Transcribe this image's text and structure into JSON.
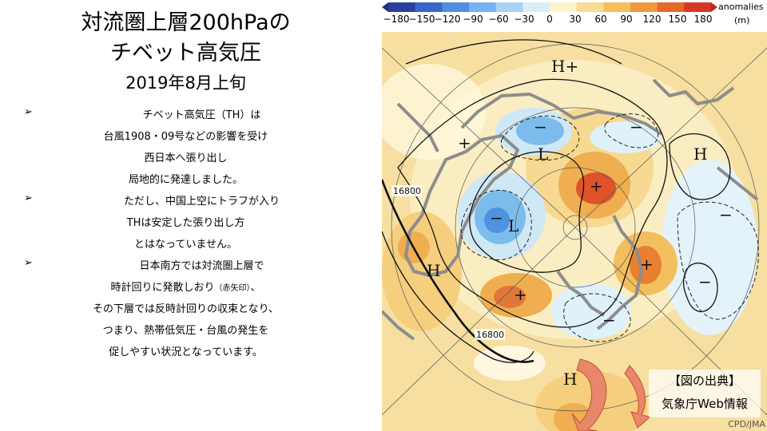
{
  "slide": {
    "title_line1": "対流圏上層200hPaの",
    "title_line2": "チベット高気圧",
    "subtitle": "2019年8月上旬",
    "bullet_mark": "➢",
    "lines": [
      "チベット高気圧（TH）は",
      "台風1908・09号などの影響を受け",
      "西日本へ張り出し",
      "局地的に発達しました。",
      "ただし、中国上空にトラフが入り",
      "THは安定した張り出し方",
      "とはなっていません。",
      "日本南方では対流圏上層で",
      "時計回りに発散しおり",
      "その下層では反時計回りの収束となり、",
      "つまり、熱帯低気圧・台風の発生を",
      "促しやすい状況となっています。"
    ],
    "inline_note": "（赤矢印）",
    "line_end_comma": "、"
  },
  "colorbar": {
    "ticks": [
      "−180",
      "−150",
      "−120",
      "−90",
      "−60",
      "−30",
      "0",
      "30",
      "60",
      "90",
      "120",
      "150",
      "180"
    ],
    "colors": [
      "#2a3f9e",
      "#3a66c9",
      "#4f8fe0",
      "#76b2ef",
      "#a8d3f3",
      "#d9eef8",
      "#fdf3c8",
      "#f8dc93",
      "#f3bf5e",
      "#ec9a3c",
      "#e46a2a",
      "#d9362a"
    ],
    "title": "anomalies",
    "unit": "(m)"
  },
  "map": {
    "labels": {
      "high": "H",
      "low": "L",
      "plus": "+",
      "minus": "−",
      "high_plus": "H+",
      "contour_1": "16800",
      "contour_2": "16800"
    }
  },
  "source": {
    "title": "【図の出典】",
    "name": "気象庁Web情報",
    "credit": "CPD/JMA"
  }
}
